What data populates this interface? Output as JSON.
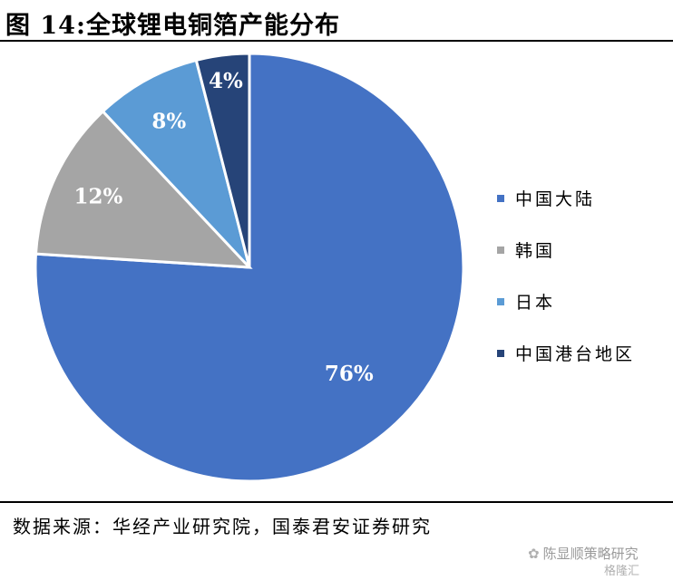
{
  "header": {
    "title": "图 14:全球锂电铜箔产能分布"
  },
  "chart_data": {
    "type": "pie",
    "categories": [
      "中国大陆",
      "韩国",
      "日本",
      "中国港台地区"
    ],
    "values": [
      76,
      12,
      8,
      4
    ],
    "labels": [
      "76%",
      "12%",
      "8%",
      "4%"
    ],
    "colors": [
      "#4472C4",
      "#A5A5A5",
      "#5B9BD5",
      "#264478"
    ],
    "start_angle_deg": 0,
    "direction": "counterclockwise",
    "legend_position": "right"
  },
  "footer": {
    "source": "数据来源：华经产业研究院，国泰君安证券研究",
    "watermark": "陈显顺策略研究",
    "watermark_logo": "格隆汇"
  }
}
